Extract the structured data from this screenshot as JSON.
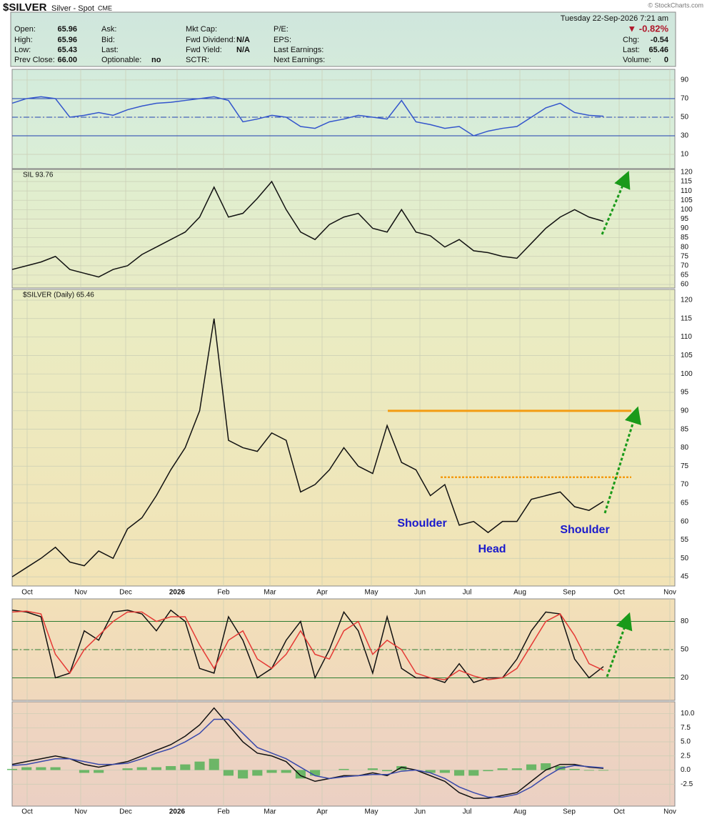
{
  "header": {
    "symbol": "$SILVER",
    "name": "Silver - Spot",
    "exchange": "CME",
    "copyright": "© StockCharts.com",
    "date": "Tuesday  22-Sep-2026  7:21 am",
    "change_pct": "▼ -0.82%",
    "columns": [
      [
        [
          "Open:",
          "65.96"
        ],
        [
          "High:",
          "65.96"
        ],
        [
          "Low:",
          "65.43"
        ],
        [
          "Prev Close:",
          "66.00"
        ]
      ],
      [
        [
          "Ask:",
          ""
        ],
        [
          "Bid:",
          ""
        ],
        [
          "Last:",
          ""
        ],
        [
          "Optionable:",
          "no"
        ]
      ],
      [
        [
          "Mkt Cap:",
          ""
        ],
        [
          "Fwd Dividend:",
          "N/A"
        ],
        [
          "Fwd Yield:",
          "N/A"
        ],
        [
          "SCTR:",
          ""
        ]
      ],
      [
        [
          "P/E:",
          ""
        ],
        [
          "EPS:",
          ""
        ],
        [
          "Last Earnings:",
          ""
        ],
        [
          "Next Earnings:",
          ""
        ]
      ]
    ],
    "right_fields": [
      [
        "Chg:",
        "-0.54"
      ],
      [
        "Last:",
        "65.46"
      ],
      [
        "Volume:",
        "0"
      ]
    ]
  },
  "x_labels": [
    "Oct",
    "Nov",
    "Dec",
    "2026",
    "Feb",
    "Mar",
    "Apr",
    "May",
    "Jun",
    "Jul",
    "Aug",
    "Sep",
    "Oct",
    "Nov"
  ],
  "chart_data": [
    {
      "type": "line",
      "ylim": [
        -5.4,
        101.5
      ],
      "yticks": [
        10,
        30,
        50,
        70,
        90
      ],
      "grid": true,
      "ref_lines": [
        {
          "value": 70,
          "style": "solid"
        },
        {
          "value": 50,
          "style": "dashdot"
        },
        {
          "value": 30,
          "style": "solid"
        }
      ],
      "ref_color": "#1f3fb0",
      "series": [
        {
          "color": "#3355cc",
          "values": [
            65,
            70,
            72,
            70,
            50,
            52,
            55,
            52,
            58,
            62,
            65,
            66,
            68,
            70,
            72,
            68,
            45,
            48,
            52,
            50,
            40,
            38,
            45,
            48,
            52,
            50,
            48,
            68,
            45,
            42,
            38,
            40,
            30,
            35,
            38,
            40,
            50,
            60,
            65,
            55,
            52,
            51
          ]
        }
      ]
    },
    {
      "type": "line",
      "title": "SIL 93.76",
      "ylim": [
        58.1,
        121.5
      ],
      "yticks": [
        60,
        65,
        70,
        75,
        80,
        85,
        90,
        95,
        100,
        105,
        110,
        115,
        120
      ],
      "grid": true,
      "series": [
        {
          "color": "#111111",
          "values": [
            68,
            70,
            72,
            75,
            68,
            66,
            64,
            68,
            70,
            76,
            80,
            84,
            88,
            96,
            112,
            96,
            98,
            106,
            115,
            100,
            88,
            84,
            92,
            96,
            98,
            90,
            88,
            100,
            88,
            86,
            80,
            84,
            78,
            77,
            75,
            74,
            82,
            90,
            96,
            100,
            96,
            93.76
          ]
        }
      ]
    },
    {
      "type": "line",
      "title": "$SILVER (Daily) 65.46",
      "ylim": [
        42.5,
        122.9
      ],
      "yticks": [
        45,
        50,
        55,
        60,
        65,
        70,
        75,
        80,
        85,
        90,
        95,
        100,
        105,
        110,
        115,
        120
      ],
      "grid": true,
      "levels": [
        {
          "value": 90,
          "style": "solid"
        },
        {
          "value": 72,
          "style": "dotted"
        }
      ],
      "level_color": "#f39c12",
      "annotations": [
        "Shoulder",
        "Head",
        "Shoulder"
      ],
      "series": [
        {
          "color": "#111111",
          "values": [
            45,
            47.5,
            50,
            53,
            49,
            48,
            52,
            50,
            58,
            61,
            67,
            74,
            80,
            90,
            115,
            82,
            80,
            79,
            84,
            82,
            68,
            70,
            74,
            80,
            75,
            73,
            86,
            76,
            74,
            67,
            70,
            59,
            60,
            57,
            60,
            60,
            66,
            67,
            68,
            64,
            63,
            65.46
          ]
        }
      ]
    },
    {
      "type": "line",
      "ylim": [
        -4,
        104
      ],
      "yticks": [
        20,
        50,
        80
      ],
      "grid": true,
      "ref_lines": [
        {
          "value": 80,
          "style": "solid"
        },
        {
          "value": 50,
          "style": "dashdot"
        },
        {
          "value": 20,
          "style": "solid"
        }
      ],
      "ref_color": "#2e7d32",
      "series": [
        {
          "color": "#111111",
          "values": [
            92,
            90,
            85,
            20,
            25,
            70,
            60,
            90,
            92,
            88,
            70,
            92,
            80,
            30,
            25,
            85,
            60,
            20,
            30,
            60,
            80,
            20,
            50,
            90,
            70,
            25,
            85,
            30,
            20,
            20,
            15,
            35,
            15,
            20,
            20,
            40,
            70,
            90,
            88,
            40,
            20,
            32
          ]
        },
        {
          "color": "#e53935",
          "values": [
            90,
            91,
            88,
            45,
            25,
            50,
            65,
            80,
            90,
            90,
            80,
            85,
            85,
            55,
            30,
            60,
            70,
            40,
            30,
            45,
            70,
            45,
            40,
            70,
            80,
            45,
            60,
            50,
            25,
            20,
            18,
            28,
            22,
            18,
            20,
            30,
            55,
            80,
            88,
            65,
            35,
            28
          ]
        }
      ]
    },
    {
      "type": "line",
      "ylim": [
        -6.4,
        12.1
      ],
      "yticks": [
        -2.5,
        {
          "value": 0,
          "label": "0.0"
        },
        2.5,
        {
          "value": 5,
          "label": "5.0"
        },
        7.5,
        {
          "value": 10,
          "label": "10.0"
        }
      ],
      "grid": true,
      "series": [
        {
          "color": "#4caf50",
          "mark": "bar",
          "values": [
            0.2,
            0.5,
            0.5,
            0.5,
            0,
            -0.5,
            -0.5,
            0,
            0.3,
            0.5,
            0.5,
            0.7,
            1,
            1.5,
            2,
            -1,
            -1.5,
            -1,
            -0.5,
            -0.5,
            -1.5,
            -1,
            0,
            0.2,
            0,
            0.3,
            -0.2,
            0.7,
            0,
            -0.5,
            -0.5,
            -1,
            -1,
            -0.2,
            0.3,
            0.3,
            1,
            1.2,
            0.7,
            0.2,
            -0.1,
            -0.1
          ]
        },
        {
          "color": "#111111",
          "values": [
            1,
            1.5,
            2,
            2.5,
            2,
            1,
            0.5,
            1,
            1.5,
            2.5,
            3.5,
            4.5,
            6,
            8,
            11,
            8,
            5,
            3,
            2.5,
            1.5,
            -1,
            -2,
            -1.5,
            -1,
            -1,
            -0.5,
            -1,
            0.5,
            0,
            -1,
            -2,
            -4,
            -5,
            -5,
            -4.5,
            -4,
            -2,
            0,
            1,
            1,
            0.5,
            0.3
          ]
        },
        {
          "color": "#3949ab",
          "values": [
            0.8,
            1,
            1.5,
            2,
            2,
            1.5,
            1,
            1,
            1.2,
            2,
            3,
            3.8,
            5,
            6.5,
            9,
            9,
            6.5,
            4,
            3,
            2,
            0.5,
            -1,
            -1.5,
            -1.2,
            -1,
            -0.8,
            -0.8,
            -0.2,
            0,
            -0.5,
            -1.5,
            -3,
            -4,
            -4.8,
            -4.8,
            -4.3,
            -3,
            -1.2,
            0.3,
            0.8,
            0.6,
            0.4
          ]
        }
      ]
    }
  ]
}
